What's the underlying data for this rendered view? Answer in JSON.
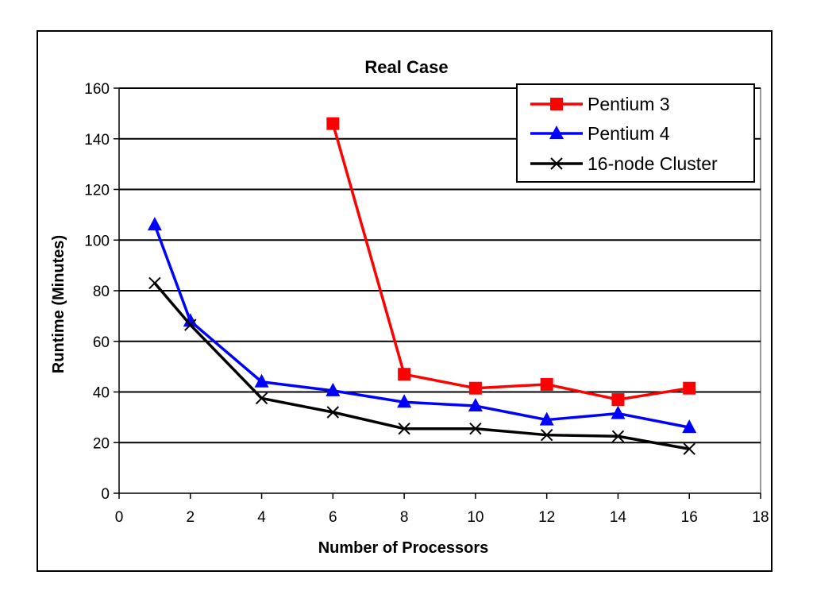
{
  "chart_data": {
    "type": "line",
    "title": "Real Case",
    "xlabel": "Number of Processors",
    "ylabel": "Runtime (Minutes)",
    "xlim": [
      0,
      18
    ],
    "ylim": [
      0,
      160
    ],
    "xticks": [
      0,
      2,
      4,
      6,
      8,
      10,
      12,
      14,
      16,
      18
    ],
    "yticks": [
      0,
      20,
      40,
      60,
      80,
      100,
      120,
      140,
      160
    ],
    "grid": "horizontal",
    "legend_position": "top-right",
    "series": [
      {
        "name": "Pentium 3",
        "color": "#ff0000",
        "marker": "square",
        "x": [
          6,
          8,
          10,
          12,
          14,
          16
        ],
        "y": [
          146,
          47,
          41.5,
          43,
          37,
          41.5
        ]
      },
      {
        "name": "Pentium 4",
        "color": "#0000ff",
        "marker": "triangle",
        "x": [
          1,
          2,
          4,
          6,
          8,
          10,
          12,
          14,
          16
        ],
        "y": [
          106,
          68,
          44,
          40.5,
          36,
          34.5,
          29,
          31.5,
          26
        ]
      },
      {
        "name": "16-node Cluster",
        "color": "#000000",
        "marker": "x",
        "x": [
          1,
          2,
          4,
          6,
          8,
          10,
          12,
          14,
          16
        ],
        "y": [
          83,
          66.5,
          37.5,
          32,
          25.5,
          25.5,
          23,
          22.5,
          17.5
        ]
      }
    ]
  }
}
